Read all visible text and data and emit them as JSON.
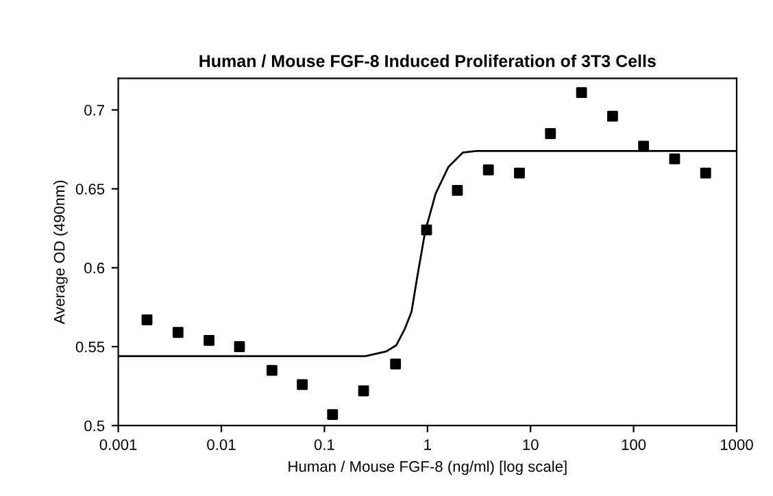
{
  "chart_data": {
    "type": "scatter",
    "title": "Human / Mouse FGF-8 Induced Proliferation of 3T3 Cells",
    "xlabel": "Human / Mouse FGF-8 (ng/ml) [log scale]",
    "ylabel": "Average OD (490nm)",
    "log": "x",
    "xlim": [
      0.001,
      1000
    ],
    "xticks": [
      0.001,
      0.01,
      0.1,
      1,
      10,
      100,
      1000
    ],
    "ylim": [
      0.5,
      0.72
    ],
    "yticks": [
      0.5,
      0.55,
      0.6,
      0.65,
      0.7
    ],
    "grid": false,
    "legend": false,
    "marker": "square",
    "series": [
      {
        "color": "#000000",
        "x": [
          0.0019,
          0.0038,
          0.0076,
          0.015,
          0.031,
          0.061,
          0.12,
          0.24,
          0.49,
          0.98,
          1.95,
          3.9,
          7.8,
          15.6,
          31.25,
          62.5,
          125,
          250,
          500
        ],
        "values": [
          0.567,
          0.559,
          0.554,
          0.55,
          0.535,
          0.526,
          0.507,
          0.522,
          0.539,
          0.624,
          0.649,
          0.662,
          0.66,
          0.685,
          0.711,
          0.696,
          0.677,
          0.669,
          0.66
        ]
      },
      {
        "type": "line",
        "color": "#000000",
        "line_style": "solid",
        "marker": "none",
        "x": [
          0.001,
          0.1,
          0.25,
          0.4,
          0.5,
          0.6,
          0.7,
          0.8,
          0.95,
          1.2,
          1.6,
          2.2,
          3,
          5,
          1000
        ],
        "values": [
          0.544,
          0.544,
          0.544,
          0.547,
          0.551,
          0.561,
          0.572,
          0.595,
          0.623,
          0.647,
          0.664,
          0.673,
          0.674,
          0.674,
          0.674
        ]
      }
    ]
  }
}
